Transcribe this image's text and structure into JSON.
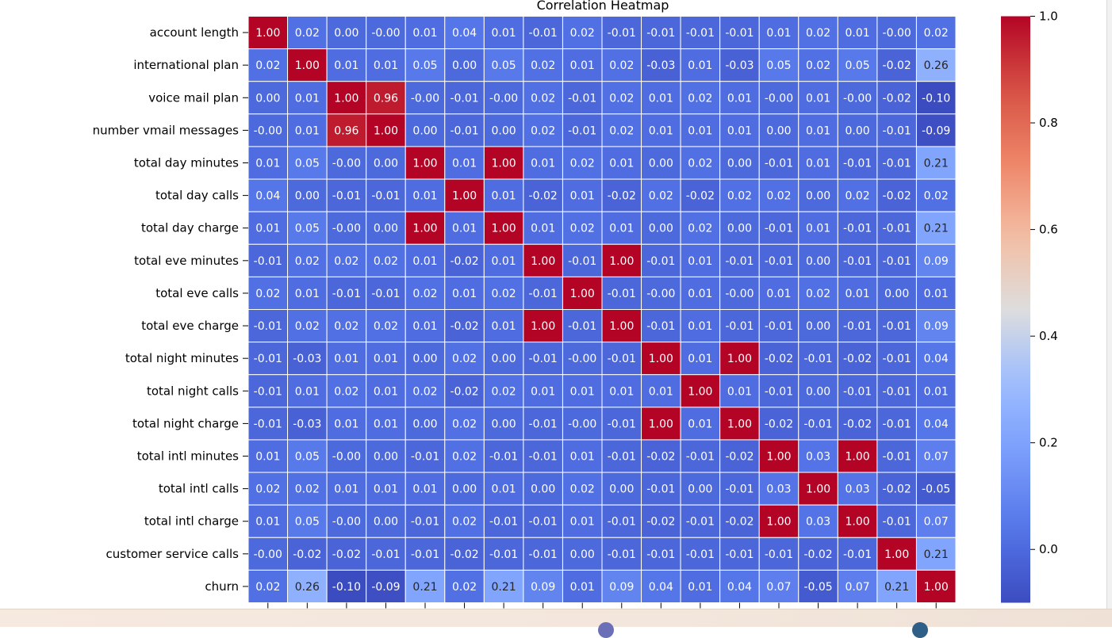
{
  "chart_data": {
    "type": "heatmap",
    "title": "Correlation Heatmap",
    "labels": [
      "account length",
      "international plan",
      "voice mail plan",
      "number vmail messages",
      "total day minutes",
      "total day calls",
      "total day charge",
      "total eve minutes",
      "total eve calls",
      "total eve charge",
      "total night minutes",
      "total night calls",
      "total night charge",
      "total intl minutes",
      "total intl calls",
      "total intl charge",
      "customer service calls",
      "churn"
    ],
    "values": [
      [
        "1.00",
        "0.02",
        "0.00",
        "-0.00",
        "0.01",
        "0.04",
        "0.01",
        "-0.01",
        "0.02",
        "-0.01",
        "-0.01",
        "-0.01",
        "-0.01",
        "0.01",
        "0.02",
        "0.01",
        "-0.00",
        "0.02"
      ],
      [
        "0.02",
        "1.00",
        "0.01",
        "0.01",
        "0.05",
        "0.00",
        "0.05",
        "0.02",
        "0.01",
        "0.02",
        "-0.03",
        "0.01",
        "-0.03",
        "0.05",
        "0.02",
        "0.05",
        "-0.02",
        "0.26"
      ],
      [
        "0.00",
        "0.01",
        "1.00",
        "0.96",
        "-0.00",
        "-0.01",
        "-0.00",
        "0.02",
        "-0.01",
        "0.02",
        "0.01",
        "0.02",
        "0.01",
        "-0.00",
        "0.01",
        "-0.00",
        "-0.02",
        "-0.10"
      ],
      [
        "-0.00",
        "0.01",
        "0.96",
        "1.00",
        "0.00",
        "-0.01",
        "0.00",
        "0.02",
        "-0.01",
        "0.02",
        "0.01",
        "0.01",
        "0.01",
        "0.00",
        "0.01",
        "0.00",
        "-0.01",
        "-0.09"
      ],
      [
        "0.01",
        "0.05",
        "-0.00",
        "0.00",
        "1.00",
        "0.01",
        "1.00",
        "0.01",
        "0.02",
        "0.01",
        "0.00",
        "0.02",
        "0.00",
        "-0.01",
        "0.01",
        "-0.01",
        "-0.01",
        "0.21"
      ],
      [
        "0.04",
        "0.00",
        "-0.01",
        "-0.01",
        "0.01",
        "1.00",
        "0.01",
        "-0.02",
        "0.01",
        "-0.02",
        "0.02",
        "-0.02",
        "0.02",
        "0.02",
        "0.00",
        "0.02",
        "-0.02",
        "0.02"
      ],
      [
        "0.01",
        "0.05",
        "-0.00",
        "0.00",
        "1.00",
        "0.01",
        "1.00",
        "0.01",
        "0.02",
        "0.01",
        "0.00",
        "0.02",
        "0.00",
        "-0.01",
        "0.01",
        "-0.01",
        "-0.01",
        "0.21"
      ],
      [
        "-0.01",
        "0.02",
        "0.02",
        "0.02",
        "0.01",
        "-0.02",
        "0.01",
        "1.00",
        "-0.01",
        "1.00",
        "-0.01",
        "0.01",
        "-0.01",
        "-0.01",
        "0.00",
        "-0.01",
        "-0.01",
        "0.09"
      ],
      [
        "0.02",
        "0.01",
        "-0.01",
        "-0.01",
        "0.02",
        "0.01",
        "0.02",
        "-0.01",
        "1.00",
        "-0.01",
        "-0.00",
        "0.01",
        "-0.00",
        "0.01",
        "0.02",
        "0.01",
        "0.00",
        "0.01"
      ],
      [
        "-0.01",
        "0.02",
        "0.02",
        "0.02",
        "0.01",
        "-0.02",
        "0.01",
        "1.00",
        "-0.01",
        "1.00",
        "-0.01",
        "0.01",
        "-0.01",
        "-0.01",
        "0.00",
        "-0.01",
        "-0.01",
        "0.09"
      ],
      [
        "-0.01",
        "-0.03",
        "0.01",
        "0.01",
        "0.00",
        "0.02",
        "0.00",
        "-0.01",
        "-0.00",
        "-0.01",
        "1.00",
        "0.01",
        "1.00",
        "-0.02",
        "-0.01",
        "-0.02",
        "-0.01",
        "0.04"
      ],
      [
        "-0.01",
        "0.01",
        "0.02",
        "0.01",
        "0.02",
        "-0.02",
        "0.02",
        "0.01",
        "0.01",
        "0.01",
        "0.01",
        "1.00",
        "0.01",
        "-0.01",
        "0.00",
        "-0.01",
        "-0.01",
        "0.01"
      ],
      [
        "-0.01",
        "-0.03",
        "0.01",
        "0.01",
        "0.00",
        "0.02",
        "0.00",
        "-0.01",
        "-0.00",
        "-0.01",
        "1.00",
        "0.01",
        "1.00",
        "-0.02",
        "-0.01",
        "-0.02",
        "-0.01",
        "0.04"
      ],
      [
        "0.01",
        "0.05",
        "-0.00",
        "0.00",
        "-0.01",
        "0.02",
        "-0.01",
        "-0.01",
        "0.01",
        "-0.01",
        "-0.02",
        "-0.01",
        "-0.02",
        "1.00",
        "0.03",
        "1.00",
        "-0.01",
        "0.07"
      ],
      [
        "0.02",
        "0.02",
        "0.01",
        "0.01",
        "0.01",
        "0.00",
        "0.01",
        "0.00",
        "0.02",
        "0.00",
        "-0.01",
        "0.00",
        "-0.01",
        "0.03",
        "1.00",
        "0.03",
        "-0.02",
        "-0.05"
      ],
      [
        "0.01",
        "0.05",
        "-0.00",
        "0.00",
        "-0.01",
        "0.02",
        "-0.01",
        "-0.01",
        "0.01",
        "-0.01",
        "-0.02",
        "-0.01",
        "-0.02",
        "1.00",
        "0.03",
        "1.00",
        "-0.01",
        "0.07"
      ],
      [
        "-0.00",
        "-0.02",
        "-0.02",
        "-0.01",
        "-0.01",
        "-0.02",
        "-0.01",
        "-0.01",
        "0.00",
        "-0.01",
        "-0.01",
        "-0.01",
        "-0.01",
        "-0.01",
        "-0.02",
        "-0.01",
        "1.00",
        "0.21"
      ],
      [
        "0.02",
        "0.26",
        "-0.10",
        "-0.09",
        "0.21",
        "0.02",
        "0.21",
        "0.09",
        "0.01",
        "0.09",
        "0.04",
        "0.01",
        "0.04",
        "0.07",
        "-0.05",
        "0.07",
        "0.21",
        "1.00"
      ]
    ],
    "colormap": "coolwarm",
    "vmin": -0.1,
    "vmax": 1.0,
    "colorbar_ticks": [
      "0.0",
      "0.2",
      "0.4",
      "0.6",
      "0.8",
      "1.0"
    ],
    "x_tick_labels_visible": false,
    "annotated": true,
    "cell_border_color": "#ffffff"
  },
  "colors": {
    "cold": "#3b4cc0",
    "neutral": "#dddddd",
    "hot": "#b40426"
  }
}
